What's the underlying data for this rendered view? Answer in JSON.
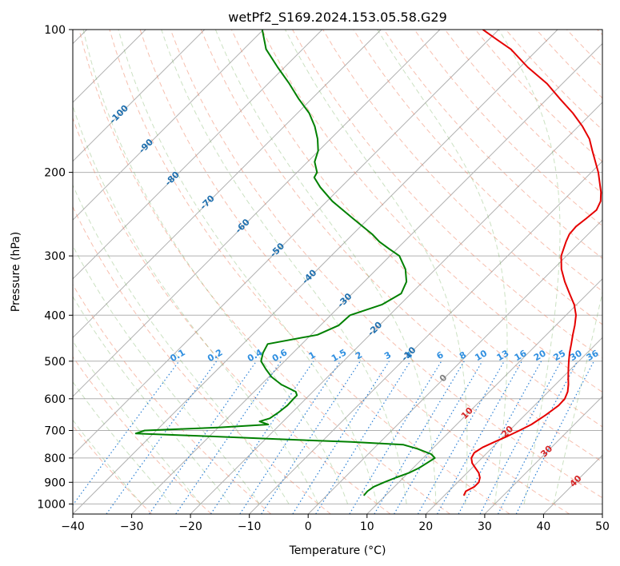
{
  "chart_data": {
    "type": "line",
    "title": "wetPf2_S169.2024.153.05.58.G29",
    "xlabel": "Temperature (°C)",
    "ylabel": "Pressure (hPa)",
    "xlim": [
      -40,
      50
    ],
    "ylim": [
      1050,
      100
    ],
    "y_scale": "log",
    "grid": true,
    "skew": "45 degrees",
    "xticks": [
      "−40",
      "−30",
      "−20",
      "−10",
      "0",
      "10",
      "20",
      "30",
      "40",
      "50"
    ],
    "yticks": [
      "100",
      "200",
      "300",
      "400",
      "500",
      "600",
      "700",
      "800",
      "900",
      "1000"
    ],
    "ytick_values": [
      100,
      200,
      300,
      400,
      500,
      600,
      700,
      800,
      900,
      1000
    ],
    "series": [
      {
        "name": "",
        "color": "#e50000",
        "points": [
          [
            960,
            23.3
          ],
          [
            940,
            22.9
          ],
          [
            920,
            23.6
          ],
          [
            900,
            23.6
          ],
          [
            880,
            23.0
          ],
          [
            860,
            22.0
          ],
          [
            840,
            20.6
          ],
          [
            820,
            19.2
          ],
          [
            800,
            18.2
          ],
          [
            780,
            17.8
          ],
          [
            760,
            18.3
          ],
          [
            740,
            19.4
          ],
          [
            720,
            20.6
          ],
          [
            700,
            21.7
          ],
          [
            680,
            22.7
          ],
          [
            650,
            23.5
          ],
          [
            620,
            24.1
          ],
          [
            600,
            24.0
          ],
          [
            580,
            23.3
          ],
          [
            560,
            22.2
          ],
          [
            540,
            20.9
          ],
          [
            520,
            19.6
          ],
          [
            500,
            18.3
          ],
          [
            480,
            17.0
          ],
          [
            460,
            15.8
          ],
          [
            440,
            14.5
          ],
          [
            420,
            13.2
          ],
          [
            400,
            11.7
          ],
          [
            380,
            9.6
          ],
          [
            360,
            6.9
          ],
          [
            340,
            4.1
          ],
          [
            320,
            1.4
          ],
          [
            300,
            -0.9
          ],
          [
            280,
            -2.5
          ],
          [
            270,
            -3.2
          ],
          [
            260,
            -3.4
          ],
          [
            250,
            -3.0
          ],
          [
            240,
            -2.7
          ],
          [
            230,
            -3.5
          ],
          [
            220,
            -5.0
          ],
          [
            200,
            -8.8
          ],
          [
            180,
            -13.5
          ],
          [
            170,
            -16.0
          ],
          [
            160,
            -19.3
          ],
          [
            150,
            -23.2
          ],
          [
            140,
            -27.8
          ],
          [
            130,
            -32.6
          ],
          [
            120,
            -38.7
          ],
          [
            110,
            -44.6
          ],
          [
            105,
            -48.6
          ],
          [
            100,
            -52.7
          ]
        ]
      },
      {
        "name": "",
        "color": "#008000",
        "points": [
          [
            960,
            6.3
          ],
          [
            940,
            6.2
          ],
          [
            920,
            6.5
          ],
          [
            900,
            7.5
          ],
          [
            880,
            8.7
          ],
          [
            860,
            10.1
          ],
          [
            840,
            11.0
          ],
          [
            820,
            11.5
          ],
          [
            800,
            12.0
          ],
          [
            785,
            10.7
          ],
          [
            765,
            7.5
          ],
          [
            750,
            4.4
          ],
          [
            740,
            -5.0
          ],
          [
            730,
            -18.0
          ],
          [
            720,
            -30.0
          ],
          [
            710,
            -43.0
          ],
          [
            700,
            -42.0
          ],
          [
            690,
            -30.0
          ],
          [
            680,
            -22.0
          ],
          [
            670,
            -24.0
          ],
          [
            660,
            -22.8
          ],
          [
            640,
            -22.3
          ],
          [
            620,
            -22.0
          ],
          [
            600,
            -22.1
          ],
          [
            590,
            -22.1
          ],
          [
            580,
            -22.9
          ],
          [
            560,
            -26.6
          ],
          [
            540,
            -29.5
          ],
          [
            520,
            -31.8
          ],
          [
            500,
            -34.0
          ],
          [
            480,
            -35.1
          ],
          [
            460,
            -35.8
          ],
          [
            440,
            -28.9
          ],
          [
            420,
            -26.9
          ],
          [
            400,
            -26.7
          ],
          [
            380,
            -23.1
          ],
          [
            360,
            -21.7
          ],
          [
            340,
            -22.8
          ],
          [
            320,
            -25.1
          ],
          [
            300,
            -28.4
          ],
          [
            290,
            -31.3
          ],
          [
            280,
            -34.2
          ],
          [
            270,
            -36.7
          ],
          [
            250,
            -42.7
          ],
          [
            230,
            -49.1
          ],
          [
            215,
            -53.5
          ],
          [
            205,
            -56.2
          ],
          [
            200,
            -56.6
          ],
          [
            190,
            -58.8
          ],
          [
            180,
            -60.1
          ],
          [
            170,
            -62.2
          ],
          [
            160,
            -64.8
          ],
          [
            150,
            -68.0
          ],
          [
            140,
            -72.2
          ],
          [
            130,
            -76.4
          ],
          [
            120,
            -81.2
          ],
          [
            110,
            -86.2
          ],
          [
            100,
            -90.2
          ]
        ]
      }
    ],
    "dry_adiabat_labels": [
      "-100",
      "-90",
      "-80",
      "-70",
      "-60",
      "-50",
      "-40",
      "-30",
      "-20",
      "-10",
      "0",
      "10",
      "20",
      "30",
      "40"
    ],
    "dry_adiabat_values": [
      -100,
      -90,
      -80,
      -70,
      -60,
      -50,
      -40,
      -30,
      -20,
      -10,
      0,
      10,
      20,
      30,
      40
    ],
    "mixing_ratio_labels": [
      "0.1",
      "0.2",
      "0.4",
      "0.6",
      "1",
      "1.5",
      "2",
      "3",
      "4",
      "6",
      "8",
      "10",
      "13",
      "16",
      "20",
      "25",
      "30",
      "36"
    ],
    "mixing_ratio_values": [
      0.1,
      0.2,
      0.4,
      0.6,
      1,
      1.5,
      2,
      3,
      4,
      6,
      8,
      10,
      13,
      16,
      20,
      25,
      30,
      36
    ]
  }
}
